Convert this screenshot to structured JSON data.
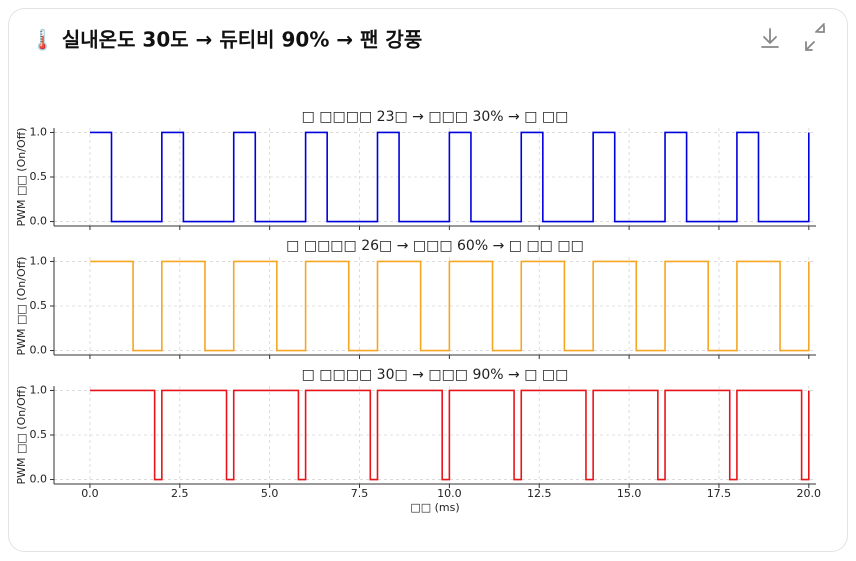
{
  "header": {
    "title": "🌡️ 실내온도 30도 → 듀티비 90% → 팬 강풍"
  },
  "chart_data": [
    {
      "type": "line",
      "title": "□ □□□□ 23□ → □□□ 30% → □ □□",
      "y_label": "PWM □□ (On/Off)",
      "x": [
        0,
        0.6,
        0.6,
        2,
        2,
        2.6,
        2.6,
        4,
        4,
        4.6,
        4.6,
        6,
        6,
        6.6,
        6.6,
        8,
        8,
        8.6,
        8.6,
        10,
        10,
        10.6,
        10.6,
        12,
        12,
        12.6,
        12.6,
        14,
        14,
        14.6,
        14.6,
        16,
        16,
        16.6,
        16.6,
        18,
        18,
        18.6,
        18.6,
        20,
        20
      ],
      "series": [
        {
          "color": "#0000dd",
          "values": [
            1,
            1,
            0,
            0,
            1,
            1,
            0,
            0,
            1,
            1,
            0,
            0,
            1,
            1,
            0,
            0,
            1,
            1,
            0,
            0,
            1,
            1,
            0,
            0,
            1,
            1,
            0,
            0,
            1,
            1,
            0,
            0,
            1,
            1,
            0,
            0,
            1,
            1,
            0,
            0,
            1
          ]
        }
      ],
      "xlim": [
        -1,
        20.2
      ],
      "ylim": [
        -0.05,
        1.05
      ],
      "yticks": [
        {
          "value": 0,
          "label": "0.0"
        },
        {
          "value": 0.5,
          "label": "0.5"
        },
        {
          "value": 1,
          "label": "1.0"
        }
      ],
      "grid": true
    },
    {
      "type": "line",
      "title": "□ □□□□ 26□ → □□□ 60% → □ □□ □□",
      "y_label": "PWM □□ (On/Off)",
      "x": [
        0,
        1.2,
        1.2,
        2,
        2,
        3.2,
        3.2,
        4,
        4,
        5.2,
        5.2,
        6,
        6,
        7.2,
        7.2,
        8,
        8,
        9.2,
        9.2,
        10,
        10,
        11.2,
        11.2,
        12,
        12,
        13.2,
        13.2,
        14,
        14,
        15.2,
        15.2,
        16,
        16,
        17.2,
        17.2,
        18,
        18,
        19.2,
        19.2,
        20,
        20
      ],
      "series": [
        {
          "color": "#f5a623",
          "values": [
            1,
            1,
            0,
            0,
            1,
            1,
            0,
            0,
            1,
            1,
            0,
            0,
            1,
            1,
            0,
            0,
            1,
            1,
            0,
            0,
            1,
            1,
            0,
            0,
            1,
            1,
            0,
            0,
            1,
            1,
            0,
            0,
            1,
            1,
            0,
            0,
            1,
            1,
            0,
            0,
            1
          ]
        }
      ],
      "xlim": [
        -1,
        20.2
      ],
      "ylim": [
        -0.05,
        1.05
      ],
      "yticks": [
        {
          "value": 0,
          "label": "0.0"
        },
        {
          "value": 0.5,
          "label": "0.5"
        },
        {
          "value": 1,
          "label": "1.0"
        }
      ],
      "grid": true
    },
    {
      "type": "line",
      "title": "□ □□□□ 30□ → □□□ 90% → □ □□",
      "y_label": "PWM □□ (On/Off)",
      "x_label": "□□ (ms)",
      "x": [
        0,
        1.8,
        1.8,
        2,
        2,
        3.8,
        3.8,
        4,
        4,
        5.8,
        5.8,
        6,
        6,
        7.8,
        7.8,
        8,
        8,
        9.8,
        9.8,
        10,
        10,
        11.8,
        11.8,
        12,
        12,
        13.8,
        13.8,
        14,
        14,
        15.8,
        15.8,
        16,
        16,
        17.8,
        17.8,
        18,
        18,
        19.8,
        19.8,
        20,
        20
      ],
      "series": [
        {
          "color": "#e8141a",
          "values": [
            1,
            1,
            0,
            0,
            1,
            1,
            0,
            0,
            1,
            1,
            0,
            0,
            1,
            1,
            0,
            0,
            1,
            1,
            0,
            0,
            1,
            1,
            0,
            0,
            1,
            1,
            0,
            0,
            1,
            1,
            0,
            0,
            1,
            1,
            0,
            0,
            1,
            1,
            0,
            0,
            1
          ]
        }
      ],
      "xlim": [
        -1,
        20.2
      ],
      "ylim": [
        -0.05,
        1.05
      ],
      "yticks": [
        {
          "value": 0,
          "label": "0.0"
        },
        {
          "value": 0.5,
          "label": "0.5"
        },
        {
          "value": 1,
          "label": "1.0"
        }
      ],
      "xticks": [
        {
          "value": 0,
          "label": "0.0"
        },
        {
          "value": 2.5,
          "label": "2.5"
        },
        {
          "value": 5,
          "label": "5.0"
        },
        {
          "value": 7.5,
          "label": "7.5"
        },
        {
          "value": 10,
          "label": "10.0"
        },
        {
          "value": 12.5,
          "label": "12.5"
        },
        {
          "value": 15,
          "label": "15.0"
        },
        {
          "value": 17.5,
          "label": "17.5"
        },
        {
          "value": 20,
          "label": "20.0"
        }
      ],
      "grid": true
    }
  ]
}
